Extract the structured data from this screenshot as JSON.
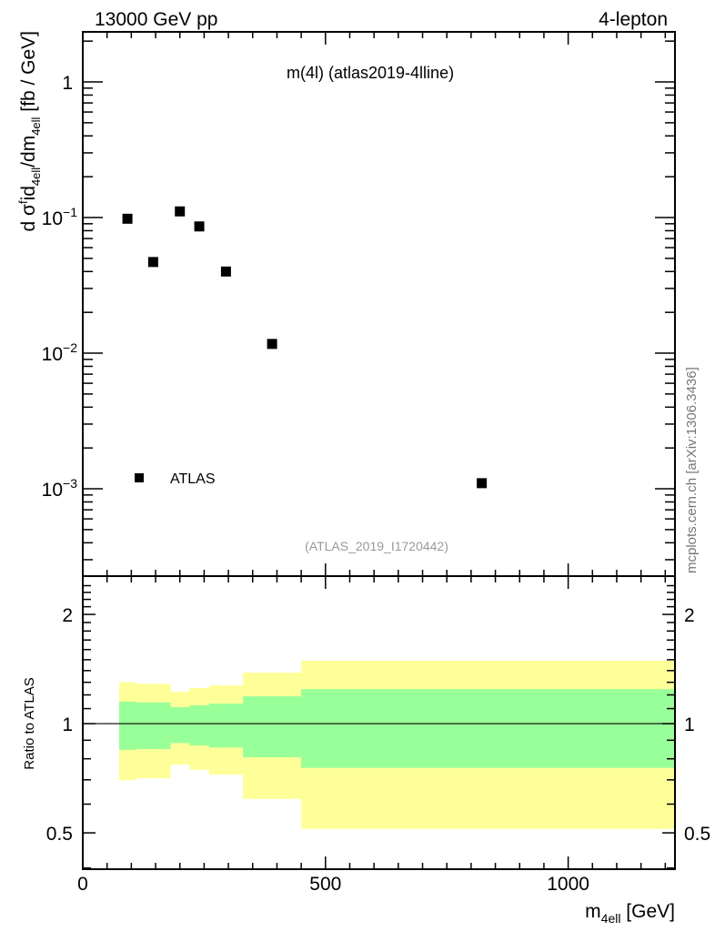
{
  "header": {
    "left": "13000 GeV pp",
    "right": "4-lepton"
  },
  "side_label": "mcplots.cern.ch [arXiv:1306.3436]",
  "chart_data": [
    {
      "type": "scatter",
      "title": "m(4l) (atlas2019-4lline)",
      "analysis_label": "(ATLAS_2019_I1720442)",
      "ylabel_parts": {
        "a": "d σ",
        "b": "f",
        "c": "id",
        "d": "4ell",
        "e": "/dm",
        "f": "4ell",
        "g": " [fb / GeV]"
      },
      "yscale": "log",
      "ylim": [
        0.000227,
        2.34
      ],
      "xlim": [
        0,
        1220
      ],
      "ytick_labels": [
        {
          "value": 1,
          "base": "1",
          "exp": ""
        },
        {
          "value": 0.1,
          "base": "10",
          "exp": "−1"
        },
        {
          "value": 0.01,
          "base": "10",
          "exp": "−2"
        },
        {
          "value": 0.001,
          "base": "10",
          "exp": "−3"
        }
      ],
      "legend": {
        "label": "ATLAS",
        "placement": "bottom-left"
      },
      "series": [
        {
          "name": "ATLAS",
          "marker": "square",
          "color": "#000000",
          "x": [
            92,
            145,
            200,
            240,
            295,
            390,
            822
          ],
          "y": [
            0.098,
            0.047,
            0.111,
            0.086,
            0.04,
            0.0117,
            0.0011
          ]
        }
      ]
    },
    {
      "type": "area",
      "ylabel": "Ratio to ATLAS",
      "xlabel_parts": {
        "a": "m",
        "b": "4ell",
        "c": " [GeV]"
      },
      "yscale": "log",
      "ylim": [
        0.397,
        2.55
      ],
      "xlim": [
        0,
        1220
      ],
      "xtick_labels": [
        "0",
        "500",
        "1000"
      ],
      "xticks": [
        0,
        500,
        1000
      ],
      "ytick_labels": [
        "2",
        "1",
        "0.5"
      ],
      "yticks": [
        2,
        1,
        0.5
      ],
      "reference_line": 1,
      "bin_edges": [
        75,
        110,
        180,
        220,
        260,
        330,
        450,
        1220
      ],
      "bands": [
        {
          "name": "total uncertainty",
          "color": "#ffff99",
          "upper": [
            1.3,
            1.287,
            1.224,
            1.253,
            1.274,
            1.382,
            1.49
          ],
          "lower": [
            0.698,
            0.707,
            0.771,
            0.746,
            0.724,
            0.62,
            0.513
          ]
        },
        {
          "name": "statistical uncertainty",
          "color": "#99ff99",
          "upper": [
            1.149,
            1.144,
            1.11,
            1.124,
            1.135,
            1.189,
            1.245
          ],
          "lower": [
            0.847,
            0.851,
            0.884,
            0.871,
            0.859,
            0.808,
            0.755
          ]
        }
      ]
    }
  ]
}
